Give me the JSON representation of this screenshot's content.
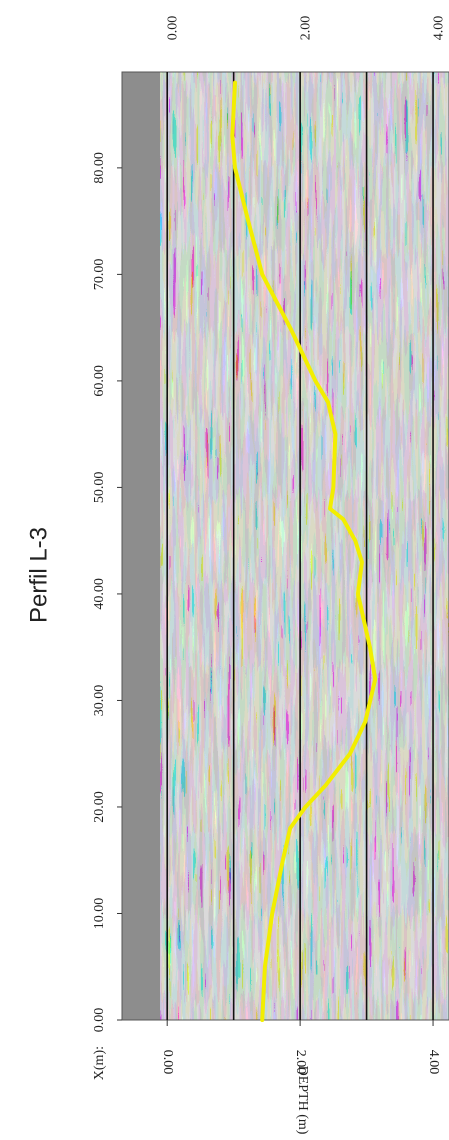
{
  "chart_data": {
    "type": "line",
    "title": "Perfil L-3",
    "x_label": "X(m):",
    "y_label": "DEPTH (m)",
    "x": [
      0,
      5,
      10,
      15,
      18,
      20,
      22,
      25,
      28,
      32,
      35,
      40,
      43,
      45,
      47,
      48,
      50,
      55,
      58,
      60,
      65,
      70,
      75,
      80,
      83,
      88
    ],
    "series": [
      {
        "color": "#f2ee00",
        "values": [
          1.43,
          1.47,
          1.58,
          1.74,
          1.85,
          2.08,
          2.38,
          2.75,
          2.98,
          3.13,
          3.05,
          2.87,
          2.93,
          2.83,
          2.65,
          2.45,
          2.5,
          2.53,
          2.42,
          2.23,
          1.85,
          1.43,
          1.22,
          1.02,
          0.98,
          1.02
        ]
      }
    ],
    "xlim": [
      0,
      89
    ],
    "xticks": [
      {
        "value": 0,
        "label": "0.00"
      },
      {
        "value": 10,
        "label": "10.00"
      },
      {
        "value": 20,
        "label": "20.00"
      },
      {
        "value": 30,
        "label": "30.00"
      },
      {
        "value": 40,
        "label": "40.00"
      },
      {
        "value": 50,
        "label": "50.00"
      },
      {
        "value": 60,
        "label": "60.00"
      },
      {
        "value": 70,
        "label": "70.00"
      },
      {
        "value": 80,
        "label": "80.00"
      }
    ],
    "ylim": [
      -0.68,
      4.24
    ],
    "yticks": [
      {
        "value": 0,
        "label": "0.00"
      },
      {
        "value": 2,
        "label": "2.00"
      },
      {
        "value": 4,
        "label": "4.00"
      }
    ],
    "ygrid": [
      0,
      1,
      2,
      3,
      4
    ]
  }
}
